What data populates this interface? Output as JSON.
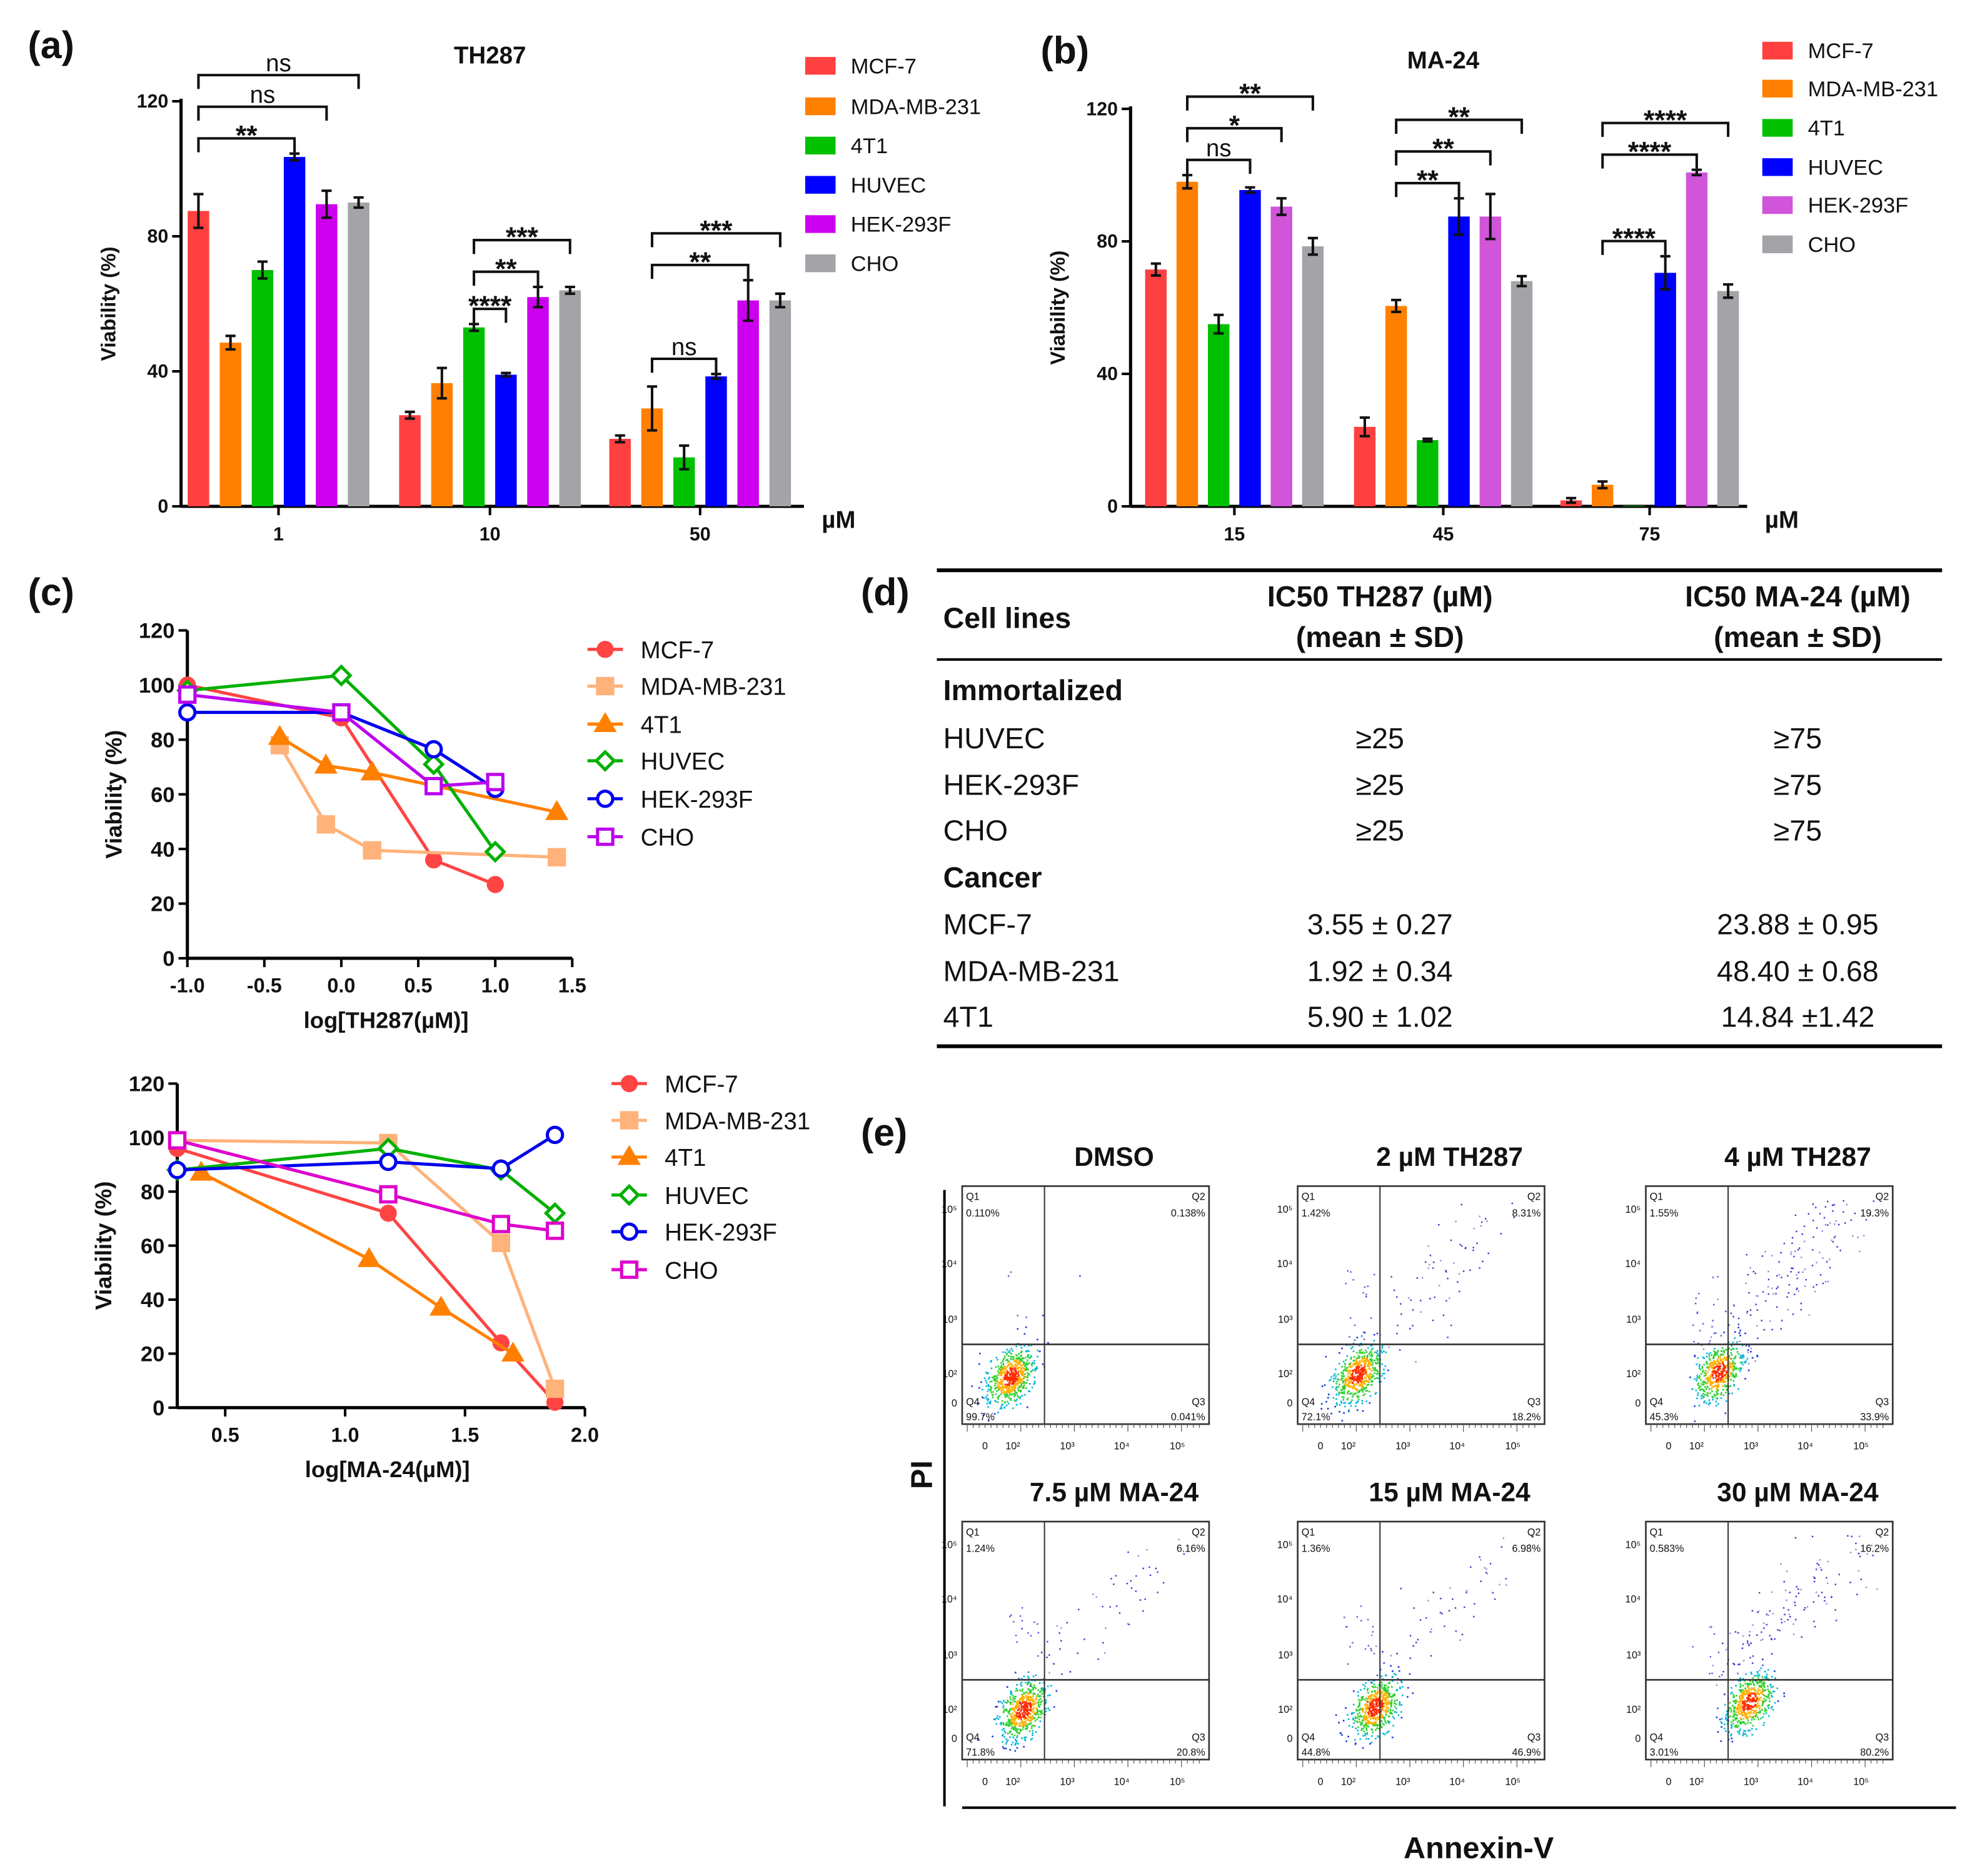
{
  "panels": {
    "a": "(a)",
    "b": "(b)",
    "c": "(c)",
    "d": "(d)",
    "e": "(e)"
  },
  "chart_data": [
    {
      "type": "bar",
      "title": "TH287",
      "ylabel": "Viability (%)",
      "xunit": "µM",
      "categories": [
        "1",
        "10",
        "50"
      ],
      "ylim": [
        0,
        120
      ],
      "yticks": [
        0,
        40,
        80,
        120
      ],
      "legend": "right",
      "series": [
        {
          "name": "MCF-7",
          "color": "#ff4040",
          "values": [
            87.5,
            27,
            20
          ],
          "errors": [
            5,
            1,
            1
          ]
        },
        {
          "name": "MDA-MB-231",
          "color": "#ff8000",
          "values": [
            48.5,
            36.5,
            29
          ],
          "errors": [
            2,
            4.5,
            6.5
          ]
        },
        {
          "name": "4T1",
          "color": "#00c000",
          "values": [
            70,
            53,
            14.5
          ],
          "errors": [
            2.5,
            1,
            3.5
          ]
        },
        {
          "name": "HUVEC",
          "color": "#0000ff",
          "values": [
            103.5,
            39,
            38.5
          ],
          "errors": [
            1,
            0.5,
            0.7
          ]
        },
        {
          "name": "HEK-293F",
          "color": "#cc00ee",
          "values": [
            89.5,
            62,
            61
          ],
          "errors": [
            4,
            3,
            6
          ]
        },
        {
          "name": "CHO",
          "color": "#a3a3a8",
          "values": [
            90,
            64,
            61
          ],
          "errors": [
            1.5,
            1,
            2
          ]
        }
      ],
      "comparisons": [
        {
          "category": "1",
          "from": "MCF-7",
          "to": "HUVEC",
          "label": "**"
        },
        {
          "category": "1",
          "from": "MCF-7",
          "to": "HEK-293F",
          "label": "ns"
        },
        {
          "category": "1",
          "from": "MCF-7",
          "to": "CHO",
          "label": "ns"
        },
        {
          "category": "10",
          "from": "4T1",
          "to": "HUVEC",
          "label": "****"
        },
        {
          "category": "10",
          "from": "4T1",
          "to": "HEK-293F",
          "label": "**"
        },
        {
          "category": "10",
          "from": "4T1",
          "to": "CHO",
          "label": "***"
        },
        {
          "category": "50",
          "from": "MDA-MB-231",
          "to": "HUVEC",
          "label": "ns"
        },
        {
          "category": "50",
          "from": "MDA-MB-231",
          "to": "HEK-293F",
          "label": "**"
        },
        {
          "category": "50",
          "from": "MDA-MB-231",
          "to": "CHO",
          "label": "***"
        }
      ]
    },
    {
      "type": "bar",
      "title": "MA-24",
      "ylabel": "Viability (%)",
      "xunit": "µM",
      "categories": [
        "15",
        "45",
        "75"
      ],
      "ylim": [
        0,
        120
      ],
      "yticks": [
        0,
        40,
        80,
        120
      ],
      "legend": "right",
      "series": [
        {
          "name": "MCF-7",
          "color": "#ff4040",
          "values": [
            71.5,
            24,
            1.8
          ],
          "errors": [
            1.8,
            2.8,
            0.7
          ]
        },
        {
          "name": "MDA-MB-231",
          "color": "#ff8000",
          "values": [
            98,
            60.5,
            6.5
          ],
          "errors": [
            2,
            1.8,
            1
          ]
        },
        {
          "name": "4T1",
          "color": "#00c000",
          "values": [
            55,
            20,
            0.2
          ],
          "errors": [
            2.8,
            0.4,
            0.1
          ]
        },
        {
          "name": "HUVEC",
          "color": "#0000ff",
          "values": [
            95.5,
            87.5,
            70.5
          ],
          "errors": [
            0.8,
            5.5,
            5
          ]
        },
        {
          "name": "HEK-293F",
          "color": "#d055d8",
          "values": [
            90.5,
            87.5,
            100.8
          ],
          "errors": [
            2.5,
            6.8,
            0.8
          ]
        },
        {
          "name": "CHO",
          "color": "#a3a3a8",
          "values": [
            78.5,
            68,
            65
          ],
          "errors": [
            2.5,
            1.5,
            2
          ]
        }
      ],
      "comparisons": [
        {
          "category": "15",
          "from": "MDA-MB-231",
          "to": "HUVEC",
          "label": "ns"
        },
        {
          "category": "15",
          "from": "MDA-MB-231",
          "to": "HEK-293F",
          "label": "*"
        },
        {
          "category": "15",
          "from": "MDA-MB-231",
          "to": "CHO",
          "label": "**"
        },
        {
          "category": "45",
          "from": "MDA-MB-231",
          "to": "HUVEC",
          "label": "**"
        },
        {
          "category": "45",
          "from": "MDA-MB-231",
          "to": "HEK-293F",
          "label": "**"
        },
        {
          "category": "45",
          "from": "MDA-MB-231",
          "to": "CHO",
          "label": "**"
        },
        {
          "category": "75",
          "from": "MDA-MB-231",
          "to": "HUVEC",
          "label": "****"
        },
        {
          "category": "75",
          "from": "MDA-MB-231",
          "to": "HEK-293F",
          "label": "****"
        },
        {
          "category": "75",
          "from": "MDA-MB-231",
          "to": "CHO",
          "label": "****"
        }
      ]
    },
    {
      "type": "line",
      "xlabel": "log[TH287(µM)]",
      "ylabel": "Viability (%)",
      "xlim": [
        -1,
        1.5
      ],
      "xticks": [
        "-1.0",
        "-0.5",
        "0.0",
        "0.5",
        "1.0",
        "1.5"
      ],
      "ylim": [
        0,
        120
      ],
      "yticks": [
        0,
        20,
        40,
        60,
        80,
        100,
        120
      ],
      "legend": "right",
      "series": [
        {
          "name": "MCF-7",
          "color": "#ff4444",
          "marker": "filled-circle",
          "x": [
            -1,
            0,
            0.6,
            1
          ],
          "y": [
            100,
            88,
            36,
            27
          ]
        },
        {
          "name": "MDA-MB-231",
          "color": "#ffb27a",
          "marker": "filled-square",
          "x": [
            -0.4,
            -0.1,
            0.2,
            1.4
          ],
          "y": [
            78,
            49,
            39.5,
            37
          ]
        },
        {
          "name": "4T1",
          "color": "#ff8000",
          "marker": "filled-triangle",
          "x": [
            -0.4,
            -0.1,
            0.2,
            1.4
          ],
          "y": [
            81,
            70.5,
            68,
            53.5
          ]
        },
        {
          "name": "HUVEC",
          "color": "#00b000",
          "marker": "open-diamond",
          "x": [
            -1,
            0,
            0.6,
            1
          ],
          "y": [
            98,
            103.5,
            71,
            39
          ]
        },
        {
          "name": "HEK-293F",
          "color": "#0000ee",
          "marker": "open-circle",
          "x": [
            -1,
            0,
            0.6,
            1
          ],
          "y": [
            90,
            90,
            76.5,
            62
          ]
        },
        {
          "name": "CHO",
          "color": "#bb00ee",
          "marker": "open-square",
          "x": [
            -1,
            0,
            0.6,
            1
          ],
          "y": [
            96.5,
            90,
            63,
            64.5
          ]
        }
      ]
    },
    {
      "type": "line",
      "xlabel": "log[MA-24(µM)]",
      "ylabel": "Viability (%)",
      "xlim": [
        0.3,
        2.0
      ],
      "xticks": [
        "0.5",
        "1.0",
        "1.5",
        "2.0"
      ],
      "ylim": [
        0,
        120
      ],
      "yticks": [
        0,
        20,
        40,
        60,
        80,
        100,
        120
      ],
      "legend": "right",
      "series": [
        {
          "name": "MCF-7",
          "color": "#ff4444",
          "marker": "filled-circle",
          "x": [
            0.3,
            1.18,
            1.65,
            1.875
          ],
          "y": [
            96,
            72,
            24,
            2
          ]
        },
        {
          "name": "MDA-MB-231",
          "color": "#ffb27a",
          "marker": "filled-square",
          "x": [
            0.3,
            1.18,
            1.65,
            1.875
          ],
          "y": [
            99,
            98,
            61,
            7
          ]
        },
        {
          "name": "4T1",
          "color": "#ff8000",
          "marker": "filled-triangle",
          "x": [
            0.4,
            1.1,
            1.4,
            1.7
          ],
          "y": [
            87,
            55,
            37,
            20
          ]
        },
        {
          "name": "HUVEC",
          "color": "#00b000",
          "marker": "open-diamond",
          "x": [
            0.3,
            1.18,
            1.65,
            1.875
          ],
          "y": [
            88,
            96,
            88,
            72
          ]
        },
        {
          "name": "HEK-293F",
          "color": "#0000ee",
          "marker": "open-circle",
          "x": [
            0.3,
            1.18,
            1.65,
            1.875
          ],
          "y": [
            88,
            91,
            88.5,
            101
          ]
        },
        {
          "name": "CHO",
          "color": "#dd00cc",
          "marker": "open-square",
          "x": [
            0.3,
            1.18,
            1.65,
            1.875
          ],
          "y": [
            99,
            79,
            68,
            65.5
          ]
        }
      ]
    }
  ],
  "table": {
    "headers": {
      "cell_lines": "Cell lines",
      "th287_line1": "IC50 TH287 (µM)",
      "th287_line2": "(mean ± SD)",
      "ma24_line1": "IC50 MA-24 (µM)",
      "ma24_line2": "(mean ± SD)"
    },
    "groups": {
      "immortalized": "Immortalized",
      "cancer": "Cancer"
    },
    "rows": [
      {
        "cell": "HUVEC",
        "th287": "≥25",
        "ma24": "≥75"
      },
      {
        "cell": "HEK-293F",
        "th287": "≥25",
        "ma24": "≥75"
      },
      {
        "cell": "CHO",
        "th287": "≥25",
        "ma24": "≥75"
      },
      {
        "cell": "MCF-7",
        "th287": "3.55 ± 0.27",
        "ma24": "23.88 ± 0.95"
      },
      {
        "cell": "MDA-MB-231",
        "th287": "1.92 ± 0.34",
        "ma24": "48.40 ± 0.68"
      },
      {
        "cell": "4T1",
        "th287": "5.90 ± 1.02",
        "ma24": "14.84 ±1.42"
      }
    ]
  },
  "flow": {
    "y_axis_label": "PI",
    "x_axis_label": "Annexin-V",
    "x_ticks": [
      "0",
      "10²",
      "10³",
      "10⁴",
      "10⁵"
    ],
    "y_ticks": [
      "10⁵",
      "10⁴",
      "10³",
      "10²",
      "0"
    ],
    "quadrant_names": [
      "Q1",
      "Q2",
      "Q3",
      "Q4"
    ],
    "plots": [
      {
        "title": "DMSO",
        "q1": "0.110%",
        "q2": "0.138%",
        "q3": "0.041%",
        "q4": "99.7%"
      },
      {
        "title": "2 µM TH287",
        "q1": "1.42%",
        "q2": "8.31%",
        "q3": "18.2%",
        "q4": "72.1%"
      },
      {
        "title": "4 µM TH287",
        "q1": "1.55%",
        "q2": "19.3%",
        "q3": "33.9%",
        "q4": "45.3%"
      },
      {
        "title": "7.5 µM MA-24",
        "q1": "1.24%",
        "q2": "6.16%",
        "q3": "20.8%",
        "q4": "71.8%"
      },
      {
        "title": "15 µM MA-24",
        "q1": "1.36%",
        "q2": "6.98%",
        "q3": "46.9%",
        "q4": "44.8%"
      },
      {
        "title": "30 µM MA-24",
        "q1": "0.583%",
        "q2": "16.2%",
        "q3": "80.2%",
        "q4": "3.01%"
      }
    ]
  }
}
